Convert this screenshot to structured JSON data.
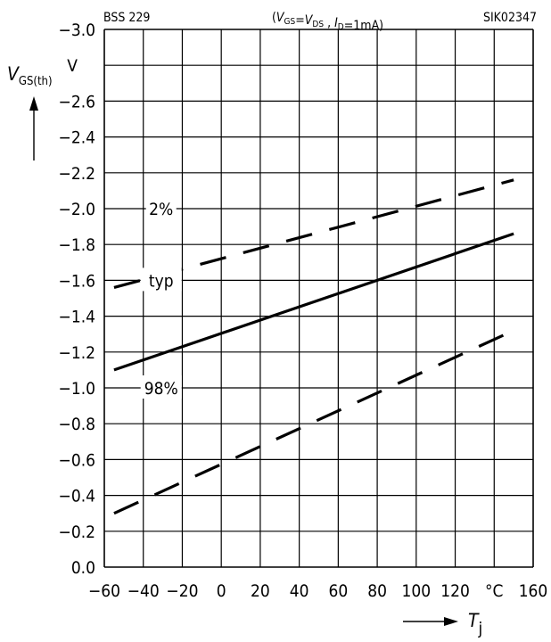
{
  "header": {
    "left": "BSS 229",
    "center_parts": [
      {
        "t": "(",
        "style": "n"
      },
      {
        "t": "V",
        "style": "i"
      },
      {
        "t": "GS",
        "style": "sub"
      },
      {
        "t": "=",
        "style": "n"
      },
      {
        "t": "V",
        "style": "i"
      },
      {
        "t": "DS",
        "style": "sub"
      },
      {
        "t": " , ",
        "style": "n"
      },
      {
        "t": "I",
        "style": "i"
      },
      {
        "t": "D",
        "style": "sub"
      },
      {
        "t": "=1mA)",
        "style": "n"
      }
    ],
    "right": "SIK02347"
  },
  "chart_data": {
    "type": "line",
    "xlabel": "T",
    "xlabel_sub": "j",
    "xunit": "°C",
    "ylabel": "V",
    "ylabel_sub": "GS(th)",
    "yunit": "V",
    "xlim": [
      -60,
      160
    ],
    "ylim": [
      0.0,
      -3.0
    ],
    "x_ticks": [
      -60,
      -40,
      -20,
      0,
      20,
      40,
      60,
      80,
      100,
      120,
      160
    ],
    "x_tick_labels": [
      "−60",
      "−40",
      "−20",
      "0",
      "20",
      "40",
      "60",
      "80",
      "100",
      "120",
      "160"
    ],
    "y_ticks": [
      -3.0,
      -2.6,
      -2.4,
      -2.2,
      -2.0,
      -1.8,
      -1.6,
      -1.4,
      -1.2,
      -1.0,
      -0.8,
      -0.6,
      -0.4,
      -0.2,
      0.0
    ],
    "y_tick_labels": [
      "−3.0",
      "−2.6",
      "−2.4",
      "−2.2",
      "−2.0",
      "−1.8",
      "−1.6",
      "−1.4",
      "−1.2",
      "−1.0",
      "−0.8",
      "−0.6",
      "−0.4",
      "−0.2",
      "0.0"
    ],
    "grid": true,
    "series": [
      {
        "name": "2%",
        "dash": true,
        "x": [
          -55,
          150
        ],
        "y": [
          -1.56,
          -2.16
        ],
        "label_at": [
          -40,
          -2.0
        ]
      },
      {
        "name": "typ",
        "dash": false,
        "x": [
          -55,
          150
        ],
        "y": [
          -1.1,
          -1.86
        ],
        "label_at": [
          -40,
          -1.6
        ]
      },
      {
        "name": "98%",
        "dash": true,
        "x": [
          -55,
          150
        ],
        "y": [
          -0.3,
          -1.32
        ],
        "label_at": [
          -40,
          -1.0
        ]
      }
    ]
  }
}
